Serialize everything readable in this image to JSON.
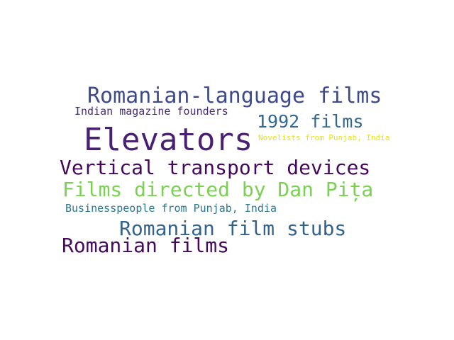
{
  "words": [
    {
      "text": "Romanian-language films",
      "color": "#3f4a8a"
    },
    {
      "text": "Indian magazine founders",
      "color": "#472c7a"
    },
    {
      "text": "1992 films",
      "color": "#31688e"
    },
    {
      "text": "Elevators",
      "color": "#482173"
    },
    {
      "text": "Novelists from Punjab, India",
      "color": "#e3e418"
    },
    {
      "text": "Vertical transport devices",
      "color": "#46085c"
    },
    {
      "text": "Films directed by Dan Pița",
      "color": "#7ad151"
    },
    {
      "text": "Businesspeople from Punjab, India",
      "color": "#2a788e"
    },
    {
      "text": "Romanian film stubs",
      "color": "#33638d"
    },
    {
      "text": "Romanian films",
      "color": "#450a5d"
    }
  ]
}
